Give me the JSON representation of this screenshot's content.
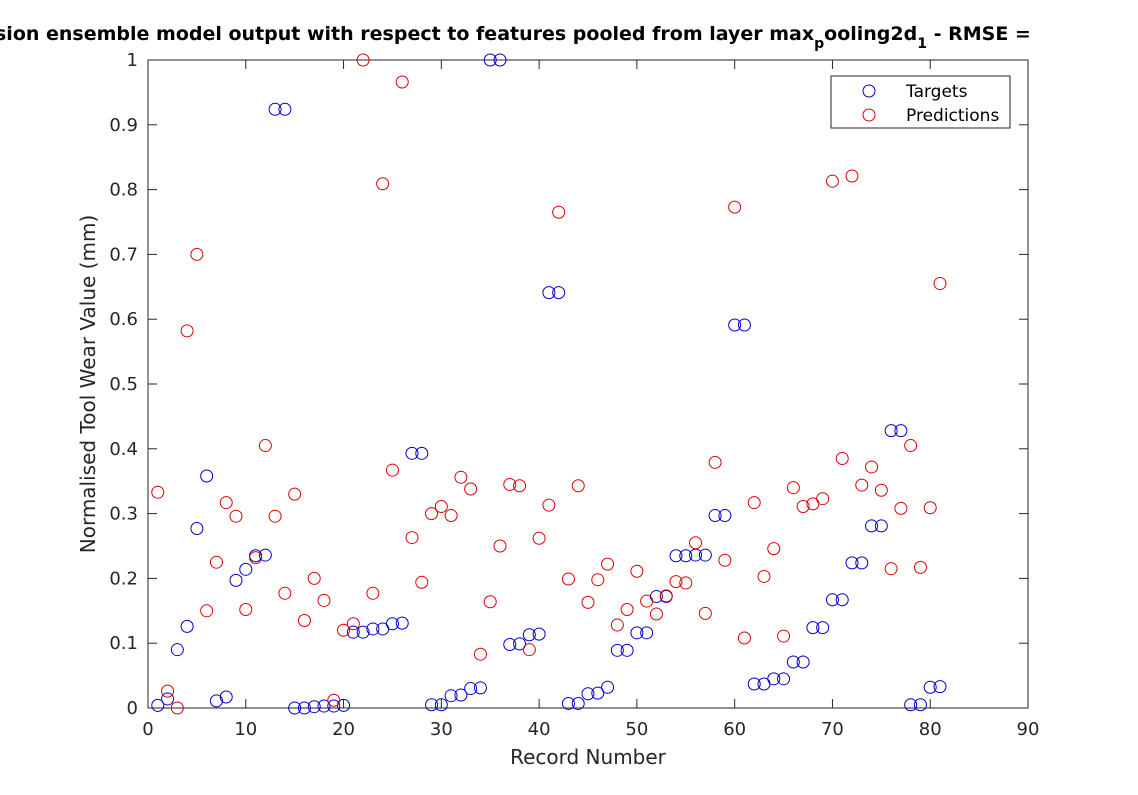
{
  "chart_data": {
    "type": "scatter",
    "title_main": "sion ensemble model output with respect to features pooled from layer max",
    "title_sub1": "p",
    "title_mid": "ooling2d",
    "title_sub2": "1",
    "title_tail": " - RMSE =",
    "xlabel": "Record Number",
    "ylabel": "Normalised Tool Wear Value (mm)",
    "xlim": [
      0,
      90
    ],
    "ylim": [
      0,
      1
    ],
    "xticks": [
      "0",
      "10",
      "20",
      "30",
      "40",
      "50",
      "60",
      "70",
      "80",
      "90"
    ],
    "yticks": [
      "0",
      "0.1",
      "0.2",
      "0.3",
      "0.4",
      "0.5",
      "0.6",
      "0.7",
      "0.8",
      "0.9",
      "1"
    ],
    "grid": false,
    "legend_position": "top-right",
    "series": [
      {
        "name": "Targets",
        "color": "#0000cc",
        "x": [
          1,
          2,
          3,
          4,
          5,
          6,
          7,
          8,
          9,
          10,
          11,
          12,
          13,
          14,
          15,
          16,
          17,
          18,
          19,
          20,
          21,
          22,
          23,
          24,
          25,
          26,
          27,
          28,
          29,
          30,
          31,
          32,
          33,
          34,
          35,
          36,
          37,
          38,
          39,
          40,
          41,
          42,
          43,
          44,
          45,
          46,
          47,
          48,
          49,
          50,
          51,
          52,
          53,
          54,
          55,
          56,
          57,
          58,
          59,
          60,
          61,
          62,
          63,
          64,
          65,
          66,
          67,
          68,
          69,
          70,
          71,
          72,
          73,
          74,
          75,
          76,
          77,
          78,
          79,
          80,
          81
        ],
        "y": [
          0.004,
          0.014,
          0.09,
          0.126,
          0.277,
          0.358,
          0.011,
          0.017,
          0.197,
          0.214,
          0.235,
          0.236,
          0.924,
          0.924,
          0.0,
          0.0,
          0.002,
          0.003,
          0.003,
          0.004,
          0.117,
          0.117,
          0.122,
          0.122,
          0.13,
          0.131,
          0.393,
          0.393,
          0.005,
          0.005,
          0.019,
          0.02,
          0.03,
          0.031,
          1.0,
          1.0,
          0.098,
          0.099,
          0.113,
          0.114,
          0.641,
          0.641,
          0.007,
          0.007,
          0.022,
          0.023,
          0.032,
          0.089,
          0.089,
          0.116,
          0.116,
          0.172,
          0.172,
          0.235,
          0.235,
          0.236,
          0.236,
          0.297,
          0.297,
          0.591,
          0.591,
          0.037,
          0.037,
          0.045,
          0.045,
          0.071,
          0.071,
          0.124,
          0.124,
          0.167,
          0.167,
          0.224,
          0.224,
          0.281,
          0.281,
          0.428,
          0.428,
          0.005,
          0.005,
          0.032,
          0.033
        ]
      },
      {
        "name": "Predictions",
        "color": "#dd0000",
        "x": [
          1,
          2,
          3,
          4,
          5,
          6,
          7,
          8,
          9,
          10,
          11,
          12,
          13,
          14,
          15,
          16,
          17,
          18,
          19,
          20,
          21,
          22,
          23,
          24,
          25,
          26,
          27,
          28,
          29,
          30,
          31,
          32,
          33,
          34,
          35,
          36,
          37,
          38,
          39,
          40,
          41,
          42,
          43,
          44,
          45,
          46,
          47,
          48,
          49,
          50,
          51,
          52,
          53,
          54,
          55,
          56,
          57,
          58,
          59,
          60,
          61,
          62,
          63,
          64,
          65,
          66,
          67,
          68,
          69,
          70,
          71,
          72,
          73,
          74,
          75,
          76,
          77,
          78,
          79,
          80,
          81
        ],
        "y": [
          0.333,
          0.026,
          0.0,
          0.582,
          0.7,
          0.15,
          0.225,
          0.317,
          0.296,
          0.152,
          0.232,
          0.405,
          0.296,
          0.177,
          0.33,
          0.135,
          0.2,
          0.166,
          0.012,
          0.12,
          0.13,
          1.0,
          0.177,
          0.809,
          0.367,
          0.966,
          0.263,
          0.194,
          0.3,
          0.311,
          0.297,
          0.356,
          0.338,
          0.083,
          0.164,
          0.25,
          0.345,
          0.343,
          0.09,
          0.262,
          0.313,
          0.765,
          0.199,
          0.343,
          0.163,
          0.198,
          0.222,
          0.128,
          0.152,
          0.211,
          0.165,
          0.145,
          0.173,
          0.195,
          0.193,
          0.255,
          0.146,
          0.379,
          0.228,
          0.773,
          0.108,
          0.317,
          0.203,
          0.246,
          0.111,
          0.34,
          0.311,
          0.315,
          0.323,
          0.813,
          0.385,
          0.821,
          0.344,
          0.372,
          0.336,
          0.215,
          0.308,
          0.405,
          0.217,
          0.309,
          0.655
        ]
      }
    ]
  }
}
